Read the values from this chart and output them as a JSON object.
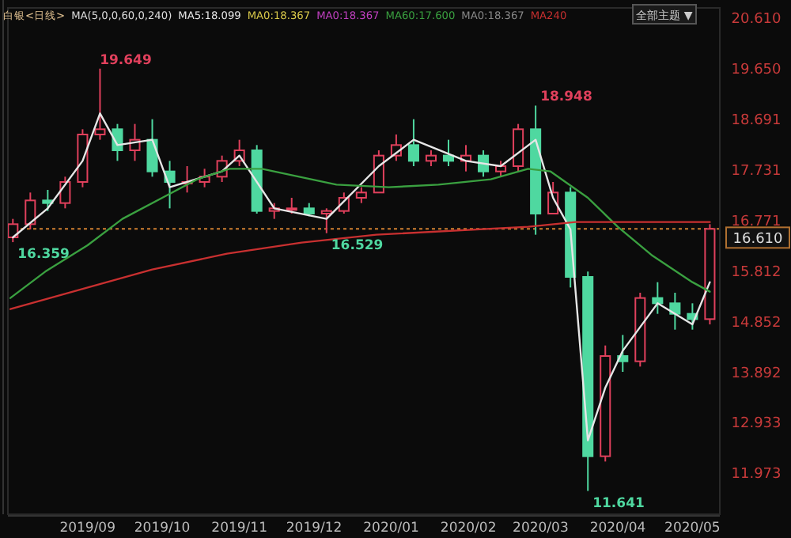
{
  "chart_data": {
    "type": "candlestick",
    "title": "白银<日线>",
    "annotations": [
      "MA(5,0,0,60,0,240)",
      "MA0:18.367",
      "MA0:18.367",
      "MA0:18.367",
      "全部主题 ▼",
      {
        "text": "19.649",
        "x": "2019-09-04",
        "y": 19.649
      },
      {
        "text": "16.359",
        "x": "2019-08-02",
        "y": 16.359
      },
      {
        "text": "16.529",
        "x": "2019-12-06",
        "y": 16.529
      },
      {
        "text": "18.948",
        "x": "2020-02-28",
        "y": 18.948
      },
      {
        "text": "11.641",
        "x": "2020-03-20",
        "y": 11.641
      }
    ],
    "x": [
      "2019-08-02",
      "2019-08-09",
      "2019-08-16",
      "2019-08-23",
      "2019-08-30",
      "2019-09-06",
      "2019-09-13",
      "2019-09-20",
      "2019-09-27",
      "2019-10-04",
      "2019-10-11",
      "2019-10-18",
      "2019-10-25",
      "2019-11-01",
      "2019-11-08",
      "2019-11-15",
      "2019-11-22",
      "2019-11-29",
      "2019-12-06",
      "2019-12-13",
      "2019-12-20",
      "2019-12-27",
      "2020-01-03",
      "2020-01-10",
      "2020-01-17",
      "2020-01-24",
      "2020-01-31",
      "2020-02-07",
      "2020-02-14",
      "2020-02-21",
      "2020-02-28",
      "2020-03-06",
      "2020-03-13",
      "2020-03-20",
      "2020-03-27",
      "2020-04-03",
      "2020-04-10",
      "2020-04-17",
      "2020-04-24",
      "2020-05-01",
      "2020-05-08"
    ],
    "ohlc": [
      [
        16.45,
        16.8,
        16.359,
        16.7
      ],
      [
        16.7,
        17.3,
        16.6,
        17.15
      ],
      [
        17.15,
        17.35,
        16.95,
        17.1
      ],
      [
        17.1,
        17.6,
        17.0,
        17.5
      ],
      [
        17.5,
        18.5,
        17.4,
        18.4
      ],
      [
        18.4,
        19.649,
        18.3,
        18.5
      ],
      [
        18.5,
        18.6,
        17.9,
        18.1
      ],
      [
        18.1,
        18.6,
        17.9,
        18.3
      ],
      [
        18.3,
        18.69,
        17.6,
        17.7
      ],
      [
        17.7,
        17.9,
        17.0,
        17.5
      ],
      [
        17.5,
        17.8,
        17.3,
        17.5
      ],
      [
        17.5,
        17.75,
        17.4,
        17.6
      ],
      [
        17.6,
        18.0,
        17.5,
        17.9
      ],
      [
        17.9,
        18.3,
        17.8,
        18.1
      ],
      [
        18.1,
        18.2,
        16.9,
        16.95
      ],
      [
        16.95,
        17.1,
        16.8,
        17.0
      ],
      [
        17.0,
        17.2,
        16.9,
        17.0
      ],
      [
        17.0,
        17.1,
        16.85,
        16.9
      ],
      [
        16.9,
        17.0,
        16.529,
        16.95
      ],
      [
        16.95,
        17.3,
        16.9,
        17.2
      ],
      [
        17.2,
        17.4,
        17.1,
        17.3
      ],
      [
        17.3,
        18.1,
        17.3,
        18.0
      ],
      [
        18.0,
        18.4,
        17.9,
        18.2
      ],
      [
        18.2,
        18.69,
        17.8,
        17.9
      ],
      [
        17.9,
        18.1,
        17.8,
        18.0
      ],
      [
        18.0,
        18.3,
        17.8,
        17.9
      ],
      [
        17.9,
        18.2,
        17.7,
        18.0
      ],
      [
        18.0,
        18.1,
        17.6,
        17.7
      ],
      [
        17.7,
        17.9,
        17.6,
        17.8
      ],
      [
        17.8,
        18.6,
        17.7,
        18.5
      ],
      [
        18.5,
        18.948,
        16.5,
        16.9
      ],
      [
        16.9,
        17.5,
        16.9,
        17.3
      ],
      [
        17.3,
        17.4,
        15.5,
        15.7
      ],
      [
        15.7,
        15.8,
        11.641,
        12.3
      ],
      [
        12.3,
        14.4,
        12.2,
        14.2
      ],
      [
        14.2,
        14.6,
        13.9,
        14.1
      ],
      [
        14.1,
        15.4,
        14.0,
        15.3
      ],
      [
        15.3,
        15.6,
        15.0,
        15.2
      ],
      [
        15.2,
        15.4,
        14.7,
        15.0
      ],
      [
        15.0,
        15.2,
        14.7,
        14.9
      ],
      [
        14.9,
        16.7,
        14.8,
        16.61
      ]
    ],
    "series": [
      {
        "type": "line",
        "name": "MA5:18.099",
        "color": "#e6e6e6",
        "x": [
          "2019-08-02",
          "2019-08-16",
          "2019-08-30",
          "2019-09-06",
          "2019-09-13",
          "2019-09-27",
          "2019-10-04",
          "2019-10-25",
          "2019-11-01",
          "2019-11-15",
          "2019-12-06",
          "2019-12-27",
          "2020-01-10",
          "2020-01-31",
          "2020-02-14",
          "2020-02-28",
          "2020-03-06",
          "2020-03-13",
          "2020-03-20",
          "2020-03-27",
          "2020-04-03",
          "2020-04-17",
          "2020-05-01",
          "2020-05-08"
        ],
        "values": [
          16.45,
          17.0,
          17.9,
          18.8,
          18.2,
          18.3,
          17.4,
          17.7,
          18.0,
          17.0,
          16.8,
          17.8,
          18.3,
          17.9,
          17.8,
          18.3,
          17.2,
          16.6,
          12.6,
          13.6,
          14.3,
          15.2,
          14.8,
          15.6
        ]
      },
      {
        "type": "line",
        "name": "MA60:17.600",
        "color": "#3aa040",
        "x": [
          "2019-08-01",
          "2019-08-15",
          "2019-09-01",
          "2019-09-15",
          "2019-10-01",
          "2019-10-15",
          "2019-10-28",
          "2019-11-10",
          "2019-11-25",
          "2019-12-10",
          "2019-12-31",
          "2020-01-20",
          "2020-02-10",
          "2020-02-25",
          "2020-03-05",
          "2020-03-20",
          "2020-04-01",
          "2020-04-15",
          "2020-05-01",
          "2020-05-08"
        ],
        "values": [
          15.3,
          15.8,
          16.3,
          16.8,
          17.2,
          17.55,
          17.75,
          17.75,
          17.6,
          17.45,
          17.4,
          17.45,
          17.55,
          17.75,
          17.7,
          17.2,
          16.65,
          16.1,
          15.6,
          15.42
        ]
      },
      {
        "type": "line",
        "name": "MA240",
        "color": "#c83030",
        "x": [
          "2019-08-01",
          "2019-09-27",
          "2019-10-27",
          "2019-11-26",
          "2019-12-26",
          "2020-02-25",
          "2020-03-15",
          "2020-05-08"
        ],
        "values": [
          15.09,
          15.84,
          16.14,
          16.35,
          16.5,
          16.65,
          16.74,
          16.74
        ]
      }
    ],
    "ref_lines": [
      {
        "axis": "y",
        "value": 16.61,
        "label": "16.610",
        "color": "#d08030",
        "line_style": "dotted"
      }
    ],
    "xlim": [
      "2019-07-31",
      "2020-05-12"
    ],
    "xticks": [
      {
        "value": "2019-09-01",
        "label": "2019/09"
      },
      {
        "value": "2019-10-01",
        "label": "2019/10"
      },
      {
        "value": "2019-11-01",
        "label": "2019/11"
      },
      {
        "value": "2019-12-01",
        "label": "2019/12"
      },
      {
        "value": "2020-01-01",
        "label": "2020/01"
      },
      {
        "value": "2020-02-01",
        "label": "2020/02"
      },
      {
        "value": "2020-03-01",
        "label": "2020/03"
      },
      {
        "value": "2020-04-01",
        "label": "2020/04"
      },
      {
        "value": "2020-05-01",
        "label": "2020/05"
      }
    ],
    "ylim": [
      11.2,
      20.8
    ],
    "yticks": [
      {
        "value": 20.61,
        "label": "20.610"
      },
      {
        "value": 19.65,
        "label": "19.650"
      },
      18.691,
      17.731,
      16.771,
      15.812,
      14.852,
      13.892,
      12.933,
      11.973
    ],
    "grid": false,
    "legend": "top"
  }
}
